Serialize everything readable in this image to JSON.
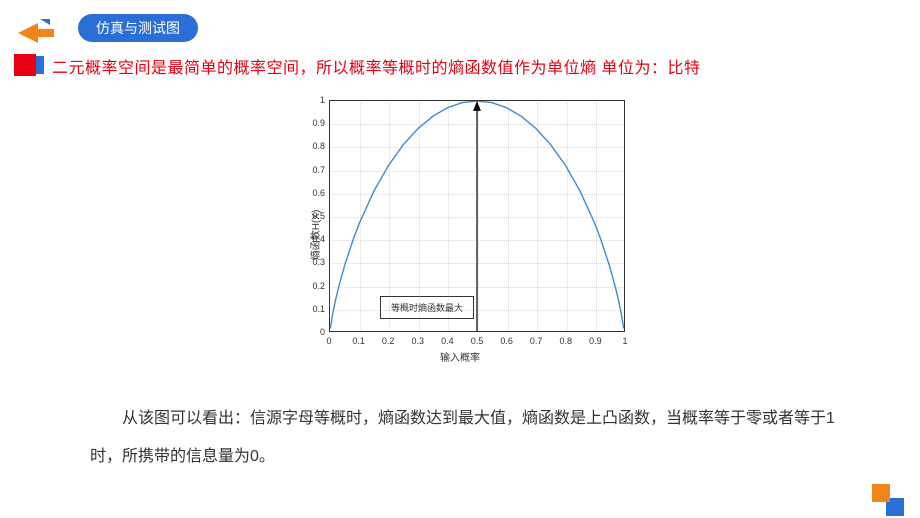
{
  "header": {
    "badge": "仿真与测试图",
    "arrow_color_main": "#f08519",
    "arrow_color_accent": "#2a6fd6"
  },
  "statement": {
    "text": "二元概率空间是最简单的概率空间，所以概率等概时的熵函数值作为单位熵  单位为：比特",
    "color": "#e60012"
  },
  "chart": {
    "type": "line",
    "xlabel": "输入概率",
    "ylabel": "熵函数H(X)",
    "xlim": [
      0,
      1
    ],
    "ylim": [
      0,
      1
    ],
    "xticks": [
      0,
      0.1,
      0.2,
      0.3,
      0.4,
      0.5,
      0.6,
      0.7,
      0.8,
      0.9,
      1
    ],
    "yticks": [
      0,
      0.1,
      0.2,
      0.3,
      0.4,
      0.5,
      0.6,
      0.7,
      0.8,
      0.9,
      1
    ],
    "legend_text": "等概时熵函数最大",
    "curve_color": "#3b8bd4",
    "curve_width": 1.4,
    "grid_color": "#cccccc",
    "bg_color": "#ffffff",
    "border_color": "#333333",
    "tick_fontsize": 9,
    "label_fontsize": 10,
    "arrow_at_x": 0.5,
    "series": {
      "x": [
        0.001,
        0.01,
        0.02,
        0.03,
        0.05,
        0.08,
        0.1,
        0.15,
        0.2,
        0.25,
        0.3,
        0.35,
        0.4,
        0.45,
        0.5,
        0.55,
        0.6,
        0.65,
        0.7,
        0.75,
        0.8,
        0.85,
        0.9,
        0.92,
        0.95,
        0.97,
        0.98,
        0.99,
        0.999
      ],
      "y": [
        0.011,
        0.081,
        0.141,
        0.194,
        0.286,
        0.402,
        0.469,
        0.61,
        0.722,
        0.811,
        0.881,
        0.934,
        0.971,
        0.993,
        1.0,
        0.993,
        0.971,
        0.934,
        0.881,
        0.811,
        0.722,
        0.61,
        0.469,
        0.402,
        0.286,
        0.194,
        0.141,
        0.081,
        0.011
      ]
    }
  },
  "body": {
    "text": "从该图可以看出：信源字母等概时，熵函数达到最大值，熵函数是上凸函数，当概率等于零或者等于1时，所携带的信息量为0。"
  },
  "corner": {
    "color1": "#f08519",
    "color2": "#2a6fd6"
  }
}
